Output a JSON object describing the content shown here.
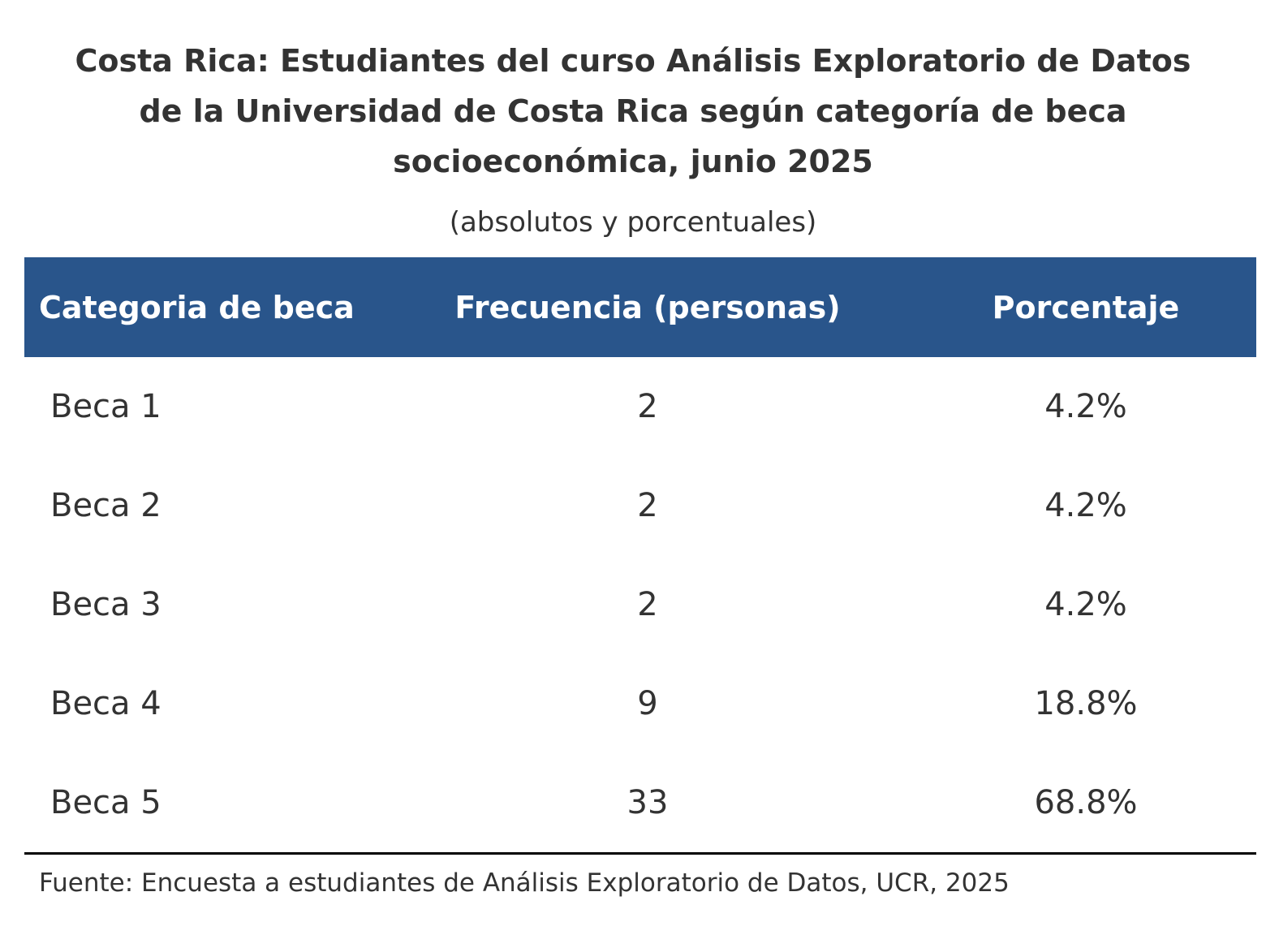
{
  "chart_data": {
    "type": "table",
    "title": "Costa Rica: Estudiantes del curso Análisis Exploratorio de Datos de la Universidad de Costa Rica según categoría de beca socioeconómica, junio 2025",
    "subtitle": "(absolutos y porcentuales)",
    "columns": [
      "Categoria de beca",
      "Frecuencia (personas)",
      "Porcentaje"
    ],
    "rows": [
      [
        "Beca 1",
        "2",
        "4.2%"
      ],
      [
        "Beca 2",
        "2",
        "4.2%"
      ],
      [
        "Beca 3",
        "2",
        "4.2%"
      ],
      [
        "Beca 4",
        "9",
        "18.8%"
      ],
      [
        "Beca 5",
        "33",
        "68.8%"
      ]
    ],
    "source": "Fuente: Encuesta a estudiantes de Análisis Exploratorio de Datos, UCR, 2025",
    "header_color": "#29558b"
  }
}
